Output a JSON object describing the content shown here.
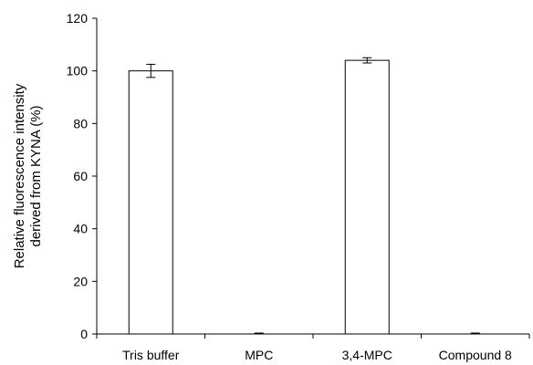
{
  "chart_data": {
    "type": "bar",
    "title": "",
    "ylabel_lines": [
      "Relative fluorescence intensity",
      "derived from KYNA  (%)"
    ],
    "xlabel": "",
    "categories": [
      "Tris buffer",
      "MPC",
      "3,4-MPC",
      "Compound 8"
    ],
    "values": [
      100,
      0,
      104,
      0
    ],
    "errors": [
      2.5,
      0,
      1,
      0
    ],
    "ylim": [
      0,
      120
    ],
    "yticks": [
      0,
      20,
      40,
      60,
      80,
      100,
      120
    ],
    "grid": false,
    "legend": "none",
    "bar_fill": "#ffffff",
    "bar_stroke": "#000000"
  }
}
